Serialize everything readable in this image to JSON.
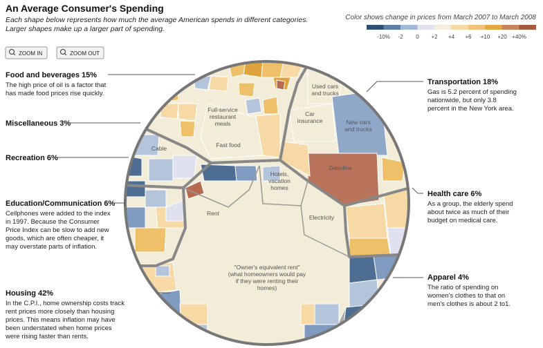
{
  "header": {
    "title": "An Average Consumer's Spending",
    "subtitle": [
      "Each shape below represents how much the average American spends in different categories.",
      "Larger shapes make up a larger part of spending."
    ]
  },
  "legend": {
    "caption": "Color shows change in prices from March 2007 to March 2008",
    "labels": [
      "-10%",
      "-2",
      "0",
      "+2",
      "+4",
      "+6",
      "+10",
      "+20",
      "+40%"
    ]
  },
  "controls": {
    "zoom_in": "ZOOM IN",
    "zoom_out": "ZOOM OUT"
  },
  "annotations": [
    {
      "heading": "Food and beverages 15%",
      "body": [
        "The high price of oil is a factor that",
        "has made food prices rise quickly."
      ]
    },
    {
      "heading": "Miscellaneous 3%",
      "body": []
    },
    {
      "heading": "Recreation 6%",
      "body": []
    },
    {
      "heading": "Education/Communication 6%",
      "body": [
        "Cellphones were added to the index",
        "in 1997. Because the Consumer",
        "Price Index can be slow to add new",
        "goods, which are often cheaper, it",
        "may overstate parts of inflation."
      ]
    },
    {
      "heading": "Housing 42%",
      "body": [
        "In the C.P.I., home ownership costs track",
        "rent prices more closely than housing",
        "prices. This means inflation may have",
        "been understated when home prices",
        "were rising faster than rents."
      ]
    },
    {
      "heading": "Transportation 18%",
      "body": [
        "Gas is 5.2 percent of spending",
        "nationwide, but only 3.8",
        "percent in the New York area."
      ]
    },
    {
      "heading": "Health care 6%",
      "body": [
        "As a group, the elderly spend",
        "about twice as much of their",
        "budget on medical care."
      ]
    },
    {
      "heading": "Apparel 4%",
      "body": [
        "The ratio of spending on",
        "women's clothes to that on",
        "men's clothes is about 2 to1."
      ]
    }
  ],
  "cell_labels": [
    [
      "Used cars",
      "and trucks"
    ],
    [
      "Car",
      "insurance"
    ],
    [
      "New cars",
      "and trucks"
    ],
    [
      "Gasoline"
    ],
    [
      "Full-service",
      "restaurant",
      "meals"
    ],
    [
      "Fast food"
    ],
    [
      "Cable"
    ],
    [
      "Hotels,",
      "vacation",
      "homes"
    ],
    [
      "Rent"
    ],
    [
      "Electricity"
    ],
    [
      "\"Owner's equivalent rent\"",
      "(what homeowners would pay",
      "if they were renting their",
      "homes)"
    ]
  ]
}
